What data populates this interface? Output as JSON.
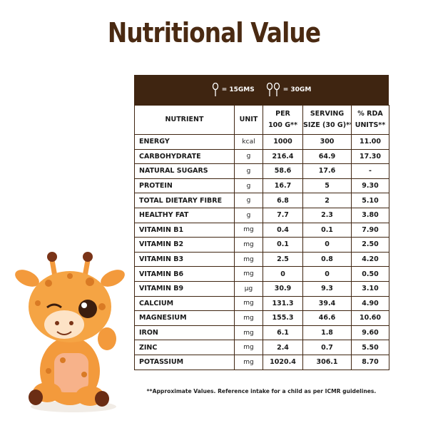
{
  "title": "Nutritional Value",
  "serving": {
    "small": "= 15GMS",
    "large": "= 30GM"
  },
  "table": {
    "headers": [
      [
        "NUTRIENT"
      ],
      [
        "UNIT"
      ],
      [
        "PER",
        "100 G**"
      ],
      [
        "SERVING",
        "SIZE (30 G)**"
      ],
      [
        "% RDA",
        "UNITS**"
      ]
    ],
    "rows": [
      [
        "ENERGY",
        "kcal",
        "1000",
        "300",
        "11.00"
      ],
      [
        "CARBOHYDRATE",
        "g",
        "216.4",
        "64.9",
        "17.30"
      ],
      [
        "NATURAL SUGARS",
        "g",
        "58.6",
        "17.6",
        "-"
      ],
      [
        "PROTEIN",
        "g",
        "16.7",
        "5",
        "9.30"
      ],
      [
        "TOTAL DIETARY FIBRE",
        "g",
        "6.8",
        "2",
        "5.10"
      ],
      [
        "HEALTHY FAT",
        "g",
        "7.7",
        "2.3",
        "3.80"
      ],
      [
        "VITAMIN B1",
        "mg",
        "0.4",
        "0.1",
        "7.90"
      ],
      [
        "VITAMIN B2",
        "mg",
        "0.1",
        "0",
        "2.50"
      ],
      [
        "VITAMIN B3",
        "mg",
        "2.5",
        "0.8",
        "4.20"
      ],
      [
        "VITAMIN B6",
        "mg",
        "0",
        "0",
        "0.50"
      ],
      [
        "VITAMIN B9",
        "µg",
        "30.9",
        "9.3",
        "3.10"
      ],
      [
        "CALCIUM",
        "mg",
        "131.3",
        "39.4",
        "4.90"
      ],
      [
        "MAGNESIUM",
        "mg",
        "155.3",
        "46.6",
        "10.60"
      ],
      [
        "IRON",
        "mg",
        "6.1",
        "1.8",
        "9.60"
      ],
      [
        "ZINC",
        "mg",
        "2.4",
        "0.7",
        "5.50"
      ],
      [
        "POTASSIUM",
        "mg",
        "1020.4",
        "306.1",
        "8.70"
      ]
    ]
  },
  "footnote": "**Approximate Values. Reference intake for a child as per ICMR guidelines."
}
